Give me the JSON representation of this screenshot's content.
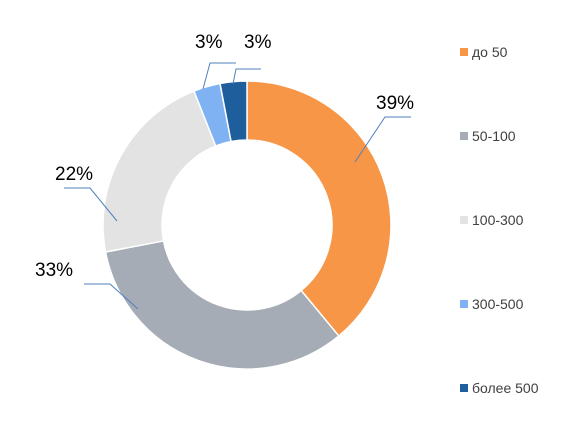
{
  "chart_data": {
    "type": "pie",
    "donut": true,
    "title": "",
    "categories": [
      "до 50",
      "50-100",
      "100-300",
      "300-500",
      "более 500"
    ],
    "values": [
      39,
      33,
      22,
      3,
      3
    ],
    "data_labels": [
      "39%",
      "33%",
      "22%",
      "3%",
      "3%"
    ],
    "colors": [
      "#F79646",
      "#A5ACB6",
      "#E3E3E3",
      "#7EB2F3",
      "#1F5E9C"
    ],
    "leader_line_color": "#4F81BD",
    "legend_position": "right",
    "start_angle": "12 o'clock",
    "direction": "clockwise"
  }
}
